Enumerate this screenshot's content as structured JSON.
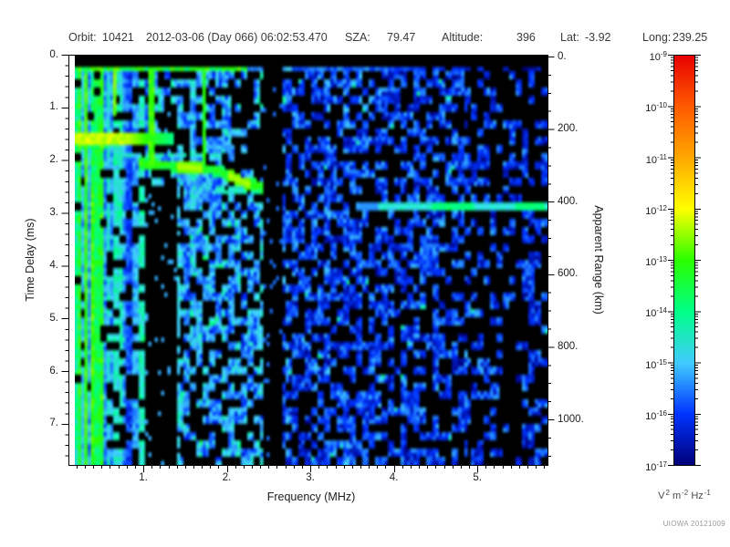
{
  "header": {
    "orbit_label": "Orbit:",
    "orbit": "10421",
    "datetime": "2012-03-06 (Day 066) 06:02:53.470",
    "sza_label": "SZA:",
    "sza": "79.47",
    "altitude_label": "Altitude:",
    "altitude": "396",
    "lat_label": "Lat:",
    "lat": "-3.92",
    "long_label": "Long:",
    "long": "239.25"
  },
  "chart_data": {
    "type": "heatmap",
    "title": "AIS radar ionogram spectrogram",
    "xlabel": "Frequency (MHz)",
    "ylabel": "Time Delay (ms)",
    "y2label": "Apparent Range (km)",
    "xlim": [
      0.18,
      5.84
    ],
    "ylim": [
      0,
      7.78
    ],
    "y2lim": [
      0,
      1130
    ],
    "xticks": [
      1,
      2,
      3,
      4,
      5
    ],
    "xtick_labels": [
      "1.",
      "2.",
      "3.",
      "4.",
      "5."
    ],
    "yticks": [
      0,
      1,
      2,
      3,
      4,
      5,
      6,
      7
    ],
    "ytick_labels": [
      "0.",
      "1.",
      "2.",
      "3.",
      "4.",
      "5.",
      "6.",
      "7."
    ],
    "y2ticks": [
      0,
      200,
      400,
      600,
      800,
      1000
    ],
    "y2tick_labels": [
      "0.",
      "200.",
      "400.",
      "600.",
      "800.",
      "1000."
    ],
    "grid": false,
    "credit": "UIOWA 20121009",
    "colorbar": {
      "scale": "log",
      "tick_exponents": [
        -9,
        -10,
        -11,
        -12,
        -13,
        -14,
        -15,
        -16,
        -17
      ],
      "unit_parts": [
        {
          "base": "V",
          "sup": "2"
        },
        {
          "base": "m",
          "sup": "-2"
        },
        {
          "base": "Hz",
          "sup": "-1"
        }
      ]
    },
    "colormap": [
      {
        "e": -17,
        "c": "#000078"
      },
      {
        "e": -16,
        "c": "#0033ff"
      },
      {
        "e": -15,
        "c": "#41ccff"
      },
      {
        "e": -14,
        "c": "#00ff88"
      },
      {
        "e": -13,
        "c": "#2aff00"
      },
      {
        "e": -12,
        "c": "#ffff00"
      },
      {
        "e": -11,
        "c": "#ffa800"
      },
      {
        "e": -10,
        "c": "#ff5a00"
      },
      {
        "e": -9,
        "c": "#e80000"
      }
    ],
    "features": {
      "blank_top_ms": 0.205,
      "surface_stripe": {
        "t_ms": [
          0.205,
          0.35
        ],
        "level_low_freq": -13.4,
        "level_high_freq": -16.7
      },
      "band_1p5ms": {
        "t_ms": [
          1.5,
          1.68
        ],
        "f_mhz": [
          0.18,
          1.35
        ],
        "peak_level": -12.3
      },
      "echo_trace": {
        "points_f_t": [
          [
            0.93,
            2.07
          ],
          [
            1.45,
            2.12
          ],
          [
            1.9,
            2.2
          ],
          [
            2.2,
            2.42
          ],
          [
            2.44,
            2.52
          ]
        ],
        "level": -13.0,
        "bright_knots_f": [
          [
            1.42,
            1.72
          ],
          [
            2.03,
            2.3
          ]
        ],
        "knot_level": -12.3
      },
      "hline_right": {
        "t_ms": [
          2.78,
          2.93
        ],
        "f_mhz": [
          3.55,
          5.84
        ],
        "level": -14.6,
        "bright_knots_f": [
          [
            4.45,
            4.95
          ],
          [
            5.45,
            5.82
          ]
        ],
        "knot_level": -13.9
      },
      "faint_line_upper": {
        "t_ms": [
          1.86,
          1.94
        ],
        "f_mhz": [
          0.72,
          1.93
        ],
        "level": -14.4
      },
      "band_under_trace": {
        "t_ms": [
          2.52,
          2.68
        ],
        "f_mhz": [
          1.85,
          2.44
        ],
        "level": -14.3
      },
      "gap_columns": [
        {
          "f_mhz": [
            2.43,
            2.66
          ],
          "t_ms": [
            0.205,
            7.78
          ]
        },
        {
          "f_mhz": [
            1.03,
            1.4
          ],
          "t_ms": [
            2.5,
            7.78
          ]
        },
        {
          "f_mhz": [
            1.18,
            1.42
          ],
          "t_ms": [
            1.1,
            1.85
          ]
        }
      ],
      "dashed_vline": {
        "f_mhz": [
          1.4,
          1.46
        ],
        "t_ms": [
          2.5,
          7.78
        ],
        "level": -14.9
      },
      "bright_vstreaks": [
        {
          "f_mhz": [
            0.3,
            0.34
          ],
          "t_ms": [
            0.35,
            7.78
          ],
          "level": -13.0
        },
        {
          "f_mhz": [
            0.63,
            0.68
          ],
          "t_ms": [
            0.35,
            1.15
          ],
          "level": -12.6
        },
        {
          "f_mhz": [
            1.06,
            1.12
          ],
          "t_ms": [
            0.35,
            2.1
          ],
          "level": -13.0
        },
        {
          "f_mhz": [
            1.7,
            1.76
          ],
          "t_ms": [
            0.35,
            2.25
          ],
          "level": -13.2
        },
        {
          "f_mhz": [
            0.37,
            0.4
          ],
          "t_ms": [
            2.5,
            7.78
          ],
          "level": -12.9
        }
      ],
      "noise_bands": [
        {
          "f_mhz": [
            0.18,
            0.57
          ],
          "base": -15.5,
          "col_amp": 2.3,
          "black_p": 0.06,
          "style": "vertical-streaks"
        },
        {
          "f_mhz": [
            0.57,
            1.4
          ],
          "base": -16.0,
          "col_amp": 1.7,
          "black_p": 0.25,
          "style": "vertical-streaks"
        },
        {
          "f_mhz": [
            1.4,
            2.43
          ],
          "base": -16.4,
          "col_amp": 0.9,
          "black_p": 0.4,
          "style": "speckle"
        },
        {
          "f_mhz": [
            2.66,
            3.85
          ],
          "base": -16.7,
          "col_amp": 0.3,
          "black_p": 0.42,
          "style": "speckle"
        },
        {
          "f_mhz": [
            3.85,
            4.9
          ],
          "base": -16.7,
          "col_amp": 0.2,
          "black_p": 0.5,
          "style": "speckle"
        },
        {
          "f_mhz": [
            4.9,
            5.84
          ],
          "base": -16.7,
          "col_amp": 0.1,
          "black_p": 0.62,
          "style": "speckle"
        }
      ]
    }
  }
}
